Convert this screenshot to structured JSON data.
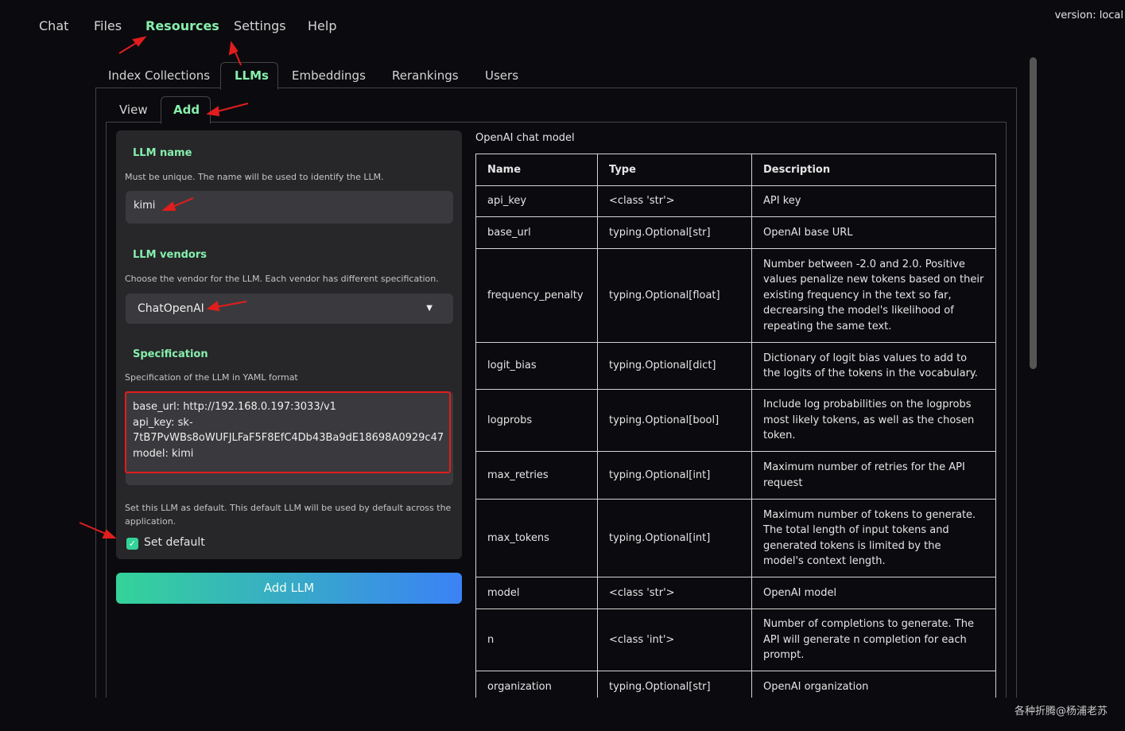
{
  "version": "version: local",
  "nav": [
    "Chat",
    "Files",
    "Resources",
    "Settings",
    "Help"
  ],
  "tabs": [
    "Index Collections",
    "LLMs",
    "Embeddings",
    "Rerankings",
    "Users"
  ],
  "subtabs": [
    "View",
    "Add"
  ],
  "form": {
    "name": {
      "label": "LLM name",
      "help": "Must be unique. The name will be used to identify the LLM.",
      "value": "kimi"
    },
    "vendor": {
      "label": "LLM vendors",
      "help": "Choose the vendor for the LLM. Each vendor has different specification.",
      "value": "ChatOpenAI"
    },
    "spec": {
      "label": "Specification",
      "help": "Specification of the LLM in YAML format",
      "lines": [
        "base_url: http://192.168.0.197:3033/v1",
        "api_key: sk-7tB7PvWBs8oWUFJLFaF5F8EfC4Db43Ba9dE18698A0929c47",
        "model: kimi"
      ]
    },
    "default": {
      "help": "Set this LLM as default. This default LLM will be used by default across the application.",
      "label": "Set default"
    },
    "button": "Add LLM"
  },
  "table": {
    "caption": "OpenAI chat model",
    "headers": [
      "Name",
      "Type",
      "Description"
    ],
    "rows": [
      [
        "api_key",
        "<class 'str'>",
        "API key"
      ],
      [
        "base_url",
        "typing.Optional[str]",
        "OpenAI base URL"
      ],
      [
        "frequency_penalty",
        "typing.Optional[float]",
        "Number between -2.0 and 2.0. Positive values penalize new tokens based on their existing frequency in the text so far, decrearsing the model's likelihood of repeating the same text."
      ],
      [
        "logit_bias",
        "typing.Optional[dict]",
        "Dictionary of logit bias values to add to the logits of the tokens in the vocabulary."
      ],
      [
        "logprobs",
        "typing.Optional[bool]",
        "Include log probabilities on the logprobs most likely tokens, as well as the chosen token."
      ],
      [
        "max_retries",
        "typing.Optional[int]",
        "Maximum number of retries for the API request"
      ],
      [
        "max_tokens",
        "typing.Optional[int]",
        "Maximum number of tokens to generate. The total length of input tokens and generated tokens is limited by the model's context length."
      ],
      [
        "model",
        "<class 'str'>",
        "OpenAI model"
      ],
      [
        "n",
        "<class 'int'>",
        "Number of completions to generate. The API will generate n completion for each prompt."
      ],
      [
        "organization",
        "typing.Optional[str]",
        "OpenAI organization"
      ]
    ]
  },
  "watermark": "各种折腾@杨浦老苏"
}
